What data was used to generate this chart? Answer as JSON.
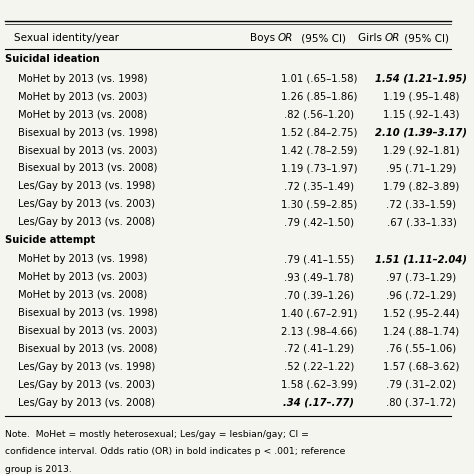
{
  "header": [
    "Sexual identity/year",
    "Boys OR (95% CI)",
    "Girls OR (95% CI)"
  ],
  "sections": [
    {
      "section_title": "Suicidal ideation",
      "rows": [
        {
          "label": "MoHet by 2013 (vs. 1998)",
          "boys": "1.01 (.65–1.58)",
          "girls": "1.54 (1.21–1.95)",
          "boys_bold": false,
          "girls_bold": true
        },
        {
          "label": "MoHet by 2013 (vs. 2003)",
          "boys": "1.26 (.85–1.86)",
          "girls": "1.19 (.95–1.48)",
          "boys_bold": false,
          "girls_bold": false
        },
        {
          "label": "MoHet by 2013 (vs. 2008)",
          "boys": ".82 (.56–1.20)",
          "girls": "1.15 (.92–1.43)",
          "boys_bold": false,
          "girls_bold": false
        },
        {
          "label": "Bisexual by 2013 (vs. 1998)",
          "boys": "1.52 (.84–2.75)",
          "girls": "2.10 (1.39–3.17)",
          "boys_bold": false,
          "girls_bold": true
        },
        {
          "label": "Bisexual by 2013 (vs. 2003)",
          "boys": "1.42 (.78–2.59)",
          "girls": "1.29 (.92–1.81)",
          "boys_bold": false,
          "girls_bold": false
        },
        {
          "label": "Bisexual by 2013 (vs. 2008)",
          "boys": "1.19 (.73–1.97)",
          "girls": ".95 (.71–1.29)",
          "boys_bold": false,
          "girls_bold": false
        },
        {
          "label": "Les/Gay by 2013 (vs. 1998)",
          "boys": ".72 (.35–1.49)",
          "girls": "1.79 (.82–3.89)",
          "boys_bold": false,
          "girls_bold": false
        },
        {
          "label": "Les/Gay by 2013 (vs. 2003)",
          "boys": "1.30 (.59–2.85)",
          "girls": ".72 (.33–1.59)",
          "boys_bold": false,
          "girls_bold": false
        },
        {
          "label": "Les/Gay by 2013 (vs. 2008)",
          "boys": ".79 (.42–1.50)",
          "girls": ".67 (.33–1.33)",
          "boys_bold": false,
          "girls_bold": false
        }
      ]
    },
    {
      "section_title": "Suicide attempt",
      "rows": [
        {
          "label": "MoHet by 2013 (vs. 1998)",
          "boys": ".79 (.41–1.55)",
          "girls": "1.51 (1.11–2.04)",
          "boys_bold": false,
          "girls_bold": true
        },
        {
          "label": "MoHet by 2013 (vs. 2003)",
          "boys": ".93 (.49–1.78)",
          "girls": ".97 (.73–1.29)",
          "boys_bold": false,
          "girls_bold": false
        },
        {
          "label": "MoHet by 2013 (vs. 2008)",
          "boys": ".70 (.39–1.26)",
          "girls": ".96 (.72–1.29)",
          "boys_bold": false,
          "girls_bold": false
        },
        {
          "label": "Bisexual by 2013 (vs. 1998)",
          "boys": "1.40 (.67–2.91)",
          "girls": "1.52 (.95–2.44)",
          "boys_bold": false,
          "girls_bold": false
        },
        {
          "label": "Bisexual by 2013 (vs. 2003)",
          "boys": "2.13 (.98–4.66)",
          "girls": "1.24 (.88–1.74)",
          "boys_bold": false,
          "girls_bold": false
        },
        {
          "label": "Bisexual by 2013 (vs. 2008)",
          "boys": ".72 (.41–1.29)",
          "girls": ".76 (.55–1.06)",
          "boys_bold": false,
          "girls_bold": false
        },
        {
          "label": "Les/Gay by 2013 (vs. 1998)",
          "boys": ".52 (.22–1.22)",
          "girls": "1.57 (.68–3.62)",
          "boys_bold": false,
          "girls_bold": false
        },
        {
          "label": "Les/Gay by 2013 (vs. 2003)",
          "boys": "1.58 (.62–3.99)",
          "girls": ".79 (.31–2.02)",
          "boys_bold": false,
          "girls_bold": false
        },
        {
          "label": "Les/Gay by 2013 (vs. 2008)",
          "boys": ".34 (.17–.77)",
          "girls": ".80 (.37–1.72)",
          "boys_bold": true,
          "girls_bold": false
        }
      ]
    }
  ],
  "note": "Note.  MoHet = mostly heterosexual; Les/gay = lesbian/gay; CI =\nconfidence interval. Odds ratio (OR) in bold indicates p < .001; reference\ngroup is 2013.",
  "bg_color": "#f5f5f0",
  "text_color": "#000000",
  "font_size": 7.2,
  "header_font_size": 7.5
}
